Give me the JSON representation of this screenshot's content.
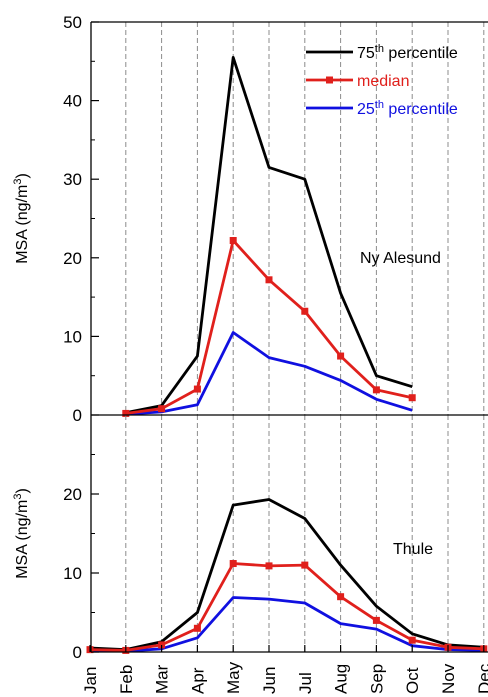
{
  "colors": {
    "p75": "#000000",
    "median": "#e0201c",
    "p25": "#1010e0",
    "grid": "#8c8c8c"
  },
  "legend": {
    "p75": {
      "pre": "75",
      "sup": "th",
      "post": " percentile"
    },
    "median": {
      "pre": "median",
      "sup": "",
      "post": ""
    },
    "p25": {
      "pre": "25",
      "sup": "th",
      "post": " percentile"
    }
  },
  "chart_data": [
    {
      "type": "line",
      "panel_label": "Ny Alesund",
      "ylabel": {
        "base": "MSA (ng/m",
        "sup": "3",
        "close": ")"
      },
      "ylim": [
        0,
        50
      ],
      "yticks": [
        0,
        10,
        20,
        30,
        40,
        50
      ],
      "categories": [
        "Jan",
        "Feb",
        "Mar",
        "Apr",
        "May",
        "Jun",
        "Jul",
        "Aug",
        "Sep",
        "Oct",
        "Nov",
        "Dec"
      ],
      "grid": "vertical dashed at month positions",
      "legend_position": "top-right",
      "series": [
        {
          "name": "75th percentile",
          "key": "p75",
          "markers": false,
          "values": [
            null,
            0.3,
            1.2,
            7.5,
            45.5,
            31.5,
            30.0,
            15.5,
            5.0,
            3.6,
            null,
            null
          ]
        },
        {
          "name": "median",
          "key": "median",
          "markers": true,
          "values": [
            null,
            0.2,
            0.8,
            3.3,
            22.2,
            17.2,
            13.2,
            7.5,
            3.2,
            2.2,
            null,
            null
          ]
        },
        {
          "name": "25th percentile",
          "key": "p25",
          "markers": false,
          "values": [
            null,
            0.1,
            0.4,
            1.3,
            10.5,
            7.3,
            6.2,
            4.4,
            2.0,
            0.6,
            null,
            null
          ]
        }
      ]
    },
    {
      "type": "line",
      "panel_label": "Thule",
      "ylabel": {
        "base": "MSA (ng/m",
        "sup": "3",
        "close": ")"
      },
      "ylim": [
        0,
        30
      ],
      "yticks": [
        0,
        10,
        20
      ],
      "categories": [
        "Jan",
        "Feb",
        "Mar",
        "Apr",
        "May",
        "Jun",
        "Jul",
        "Aug",
        "Sep",
        "Oct",
        "Nov",
        "Dec"
      ],
      "grid": "vertical dashed at month positions",
      "series": [
        {
          "name": "75th percentile",
          "key": "p75",
          "markers": false,
          "values": [
            0.5,
            0.3,
            1.3,
            5.0,
            18.6,
            19.3,
            16.9,
            11.0,
            5.8,
            2.3,
            0.9,
            0.6
          ]
        },
        {
          "name": "median",
          "key": "median",
          "markers": true,
          "values": [
            0.3,
            0.2,
            0.9,
            3.0,
            11.2,
            10.9,
            11.0,
            7.0,
            4.0,
            1.5,
            0.6,
            0.4
          ]
        },
        {
          "name": "25th percentile",
          "key": "p25",
          "markers": false,
          "values": [
            0.2,
            0.1,
            0.4,
            1.8,
            6.9,
            6.7,
            6.2,
            3.6,
            2.9,
            0.8,
            0.3,
            0.2
          ]
        }
      ]
    }
  ]
}
